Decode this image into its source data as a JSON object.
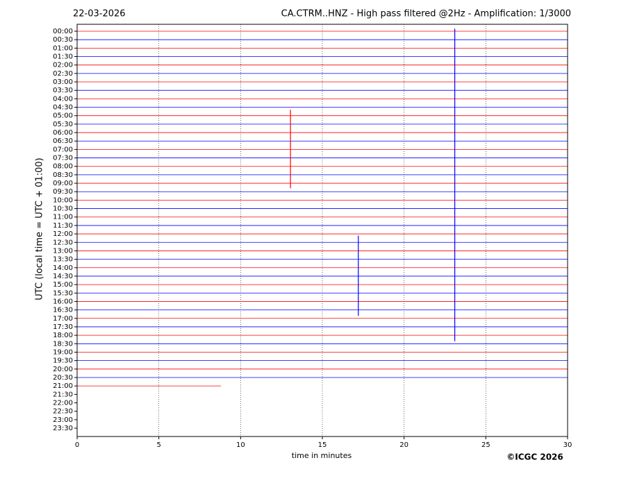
{
  "chart_data": {
    "type": "helicorder",
    "date": "22-03-2026",
    "title": "CA.CTRM..HNZ - High pass filtered @2Hz - Amplification: 1/3000",
    "x_label": "time in minutes",
    "y_label": "UTC (local time = UTC + 01:00)",
    "copyright": "©ICGC 2026",
    "categories": [
      "00:00",
      "00:30",
      "01:00",
      "01:30",
      "02:00",
      "02:30",
      "03:00",
      "03:30",
      "04:00",
      "04:30",
      "05:00",
      "05:30",
      "06:00",
      "06:30",
      "07:00",
      "07:30",
      "08:00",
      "08:30",
      "09:00",
      "09:30",
      "10:00",
      "10:30",
      "11:00",
      "11:30",
      "12:00",
      "12:30",
      "13:00",
      "13:30",
      "14:00",
      "14:30",
      "15:00",
      "15:30",
      "16:00",
      "16:30",
      "17:00",
      "17:30",
      "18:00",
      "18:30",
      "19:00",
      "19:30",
      "20:00",
      "20:30",
      "21:00",
      "21:30",
      "22:00",
      "22:30",
      "23:00",
      "23:30"
    ],
    "trace_end": [
      30,
      30,
      30,
      30,
      30,
      30,
      30,
      30,
      30,
      30,
      30,
      30,
      30,
      30,
      30,
      30,
      30,
      30,
      30,
      30,
      30,
      30,
      30,
      30,
      30,
      30,
      30,
      30,
      30,
      30,
      30,
      30,
      30,
      30,
      30,
      30,
      30,
      30,
      30,
      30,
      30,
      30,
      8.8,
      null,
      null,
      null,
      null,
      null
    ],
    "colors": [
      "#ff0000",
      "#0000ff"
    ],
    "events": [
      {
        "minute": 13.05,
        "row_start": 9.3,
        "row_end": 18.6,
        "color": "#ff0000"
      },
      {
        "minute": 17.2,
        "row_start": 24.2,
        "row_end": 33.7,
        "color": "#0000ff"
      },
      {
        "minute": 23.1,
        "row_start": -0.3,
        "row_end": 36.7,
        "color": "#0000ff"
      }
    ],
    "xlim": [
      0,
      30
    ],
    "xticks": [
      0,
      5,
      10,
      15,
      20,
      25,
      30
    ],
    "grid": true
  }
}
